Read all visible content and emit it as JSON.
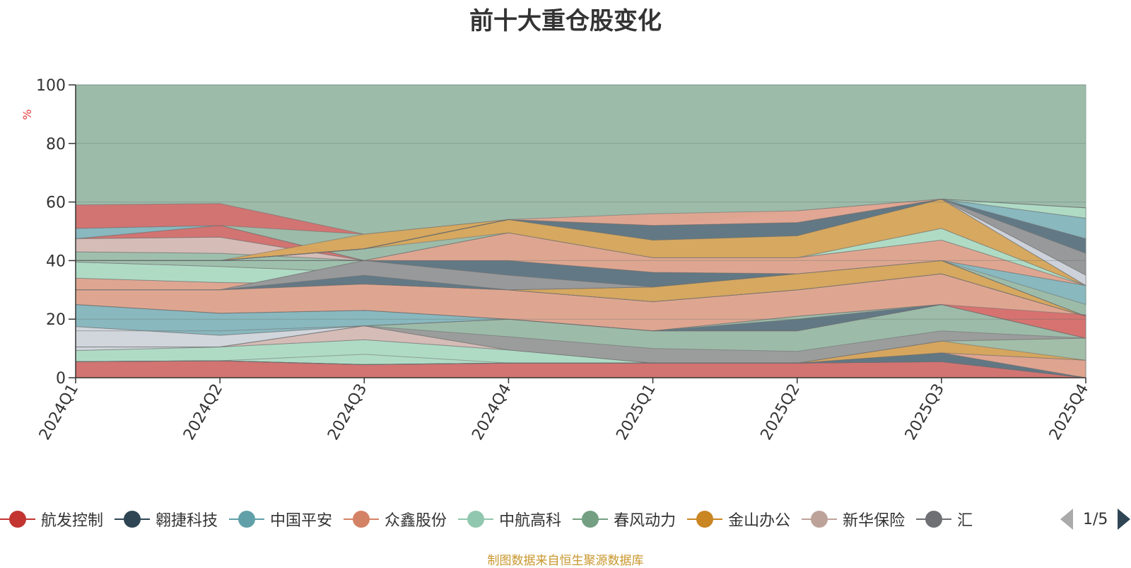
{
  "title": "前十大重仓股变化",
  "source_note": "制图数据来自恒生聚源数据库",
  "pager": {
    "text": "1/5",
    "prev_icon": "triangle-left",
    "next_icon": "triangle-right"
  },
  "chart_data": {
    "type": "area",
    "title": "前十大重仓股变化",
    "ylabel": "%",
    "ylim": [
      0,
      100
    ],
    "yticks": [
      0,
      20,
      40,
      60,
      80,
      100
    ],
    "categories": [
      "2024Q1",
      "2024Q2",
      "2024Q3",
      "2024Q4",
      "2025Q1",
      "2025Q2",
      "2025Q3",
      "2025Q4"
    ],
    "legend_visible": [
      "航发控制",
      "翱捷科技",
      "中国平安",
      "众鑫股份",
      "中航高科",
      "春风动力",
      "金山办公",
      "新华保险",
      "汇"
    ],
    "layers": [
      {
        "color": "#d5706f",
        "lower": [
          0,
          0,
          0,
          0,
          0,
          0,
          0,
          0
        ],
        "upper": [
          5.5,
          5.8,
          4.5,
          5,
          5,
          5,
          5.5,
          0
        ]
      },
      {
        "color": "#b0dcc6",
        "lower": [
          5.5,
          5.8,
          4.5,
          5,
          5,
          5,
          5.5,
          0
        ],
        "upper": [
          9.3,
          10.5,
          13,
          9.5,
          5,
          5,
          5.5,
          0
        ]
      },
      {
        "color": "#d3d7de",
        "lower": [
          9.3,
          10.5,
          17.7,
          20,
          16,
          16,
          25,
          13.5
        ],
        "upper": [
          17.5,
          14.5,
          17.7,
          20,
          16,
          16,
          25,
          13.5
        ]
      },
      {
        "color": "#88b7c0",
        "lower": [
          17.5,
          14.5,
          17.7,
          20,
          16,
          16,
          25,
          13.5
        ],
        "upper": [
          25,
          22,
          23,
          20,
          16,
          16,
          25,
          13.5
        ]
      },
      {
        "color": "#e1a48f",
        "lower": [
          25,
          22,
          23,
          20,
          16,
          21,
          25,
          13.5
        ],
        "upper": [
          34,
          32.5,
          32,
          30,
          26,
          30,
          35.5,
          21
        ]
      },
      {
        "color": "#b0dcc6",
        "lower": [
          34,
          32.5,
          32,
          30,
          26,
          30,
          35.5,
          21
        ],
        "upper": [
          39.5,
          38,
          36,
          30,
          26,
          30,
          35.5,
          21
        ]
      },
      {
        "color": "#9fbfad",
        "lower": [
          39.5,
          38,
          36,
          30,
          26,
          30,
          35.5,
          21
        ],
        "upper": [
          43,
          42.5,
          40,
          30,
          26,
          30,
          35.5,
          21
        ]
      },
      {
        "color": "#d8bcb7",
        "lower": [
          43,
          42.5,
          40,
          30,
          26,
          30,
          35.5,
          21
        ],
        "upper": [
          47.5,
          48,
          40,
          30,
          26,
          30,
          35.5,
          21
        ]
      },
      {
        "color": "#d5706f",
        "lower": [
          47.5,
          48,
          40,
          30,
          26,
          30,
          35.5,
          21
        ],
        "upper": [
          47.5,
          52,
          40,
          30,
          26,
          30,
          35.5,
          21
        ]
      },
      {
        "color": "#88b7c0",
        "lower": [
          47.5,
          52,
          40,
          30,
          26,
          30,
          35.5,
          21
        ],
        "upper": [
          51,
          52,
          40,
          30,
          26,
          30,
          35.5,
          21
        ]
      },
      {
        "color": "#d5706f",
        "lower": [
          51,
          52,
          49,
          54,
          52,
          56,
          61,
          58
        ],
        "upper": [
          59,
          59.5,
          49,
          54,
          52,
          56,
          61,
          58
        ]
      },
      {
        "color": "#b0dcc6",
        "lower": [
          5.5,
          5.8,
          4.5,
          5,
          5,
          5,
          5.5,
          0
        ],
        "upper": [
          5.5,
          5.8,
          8,
          5,
          5,
          5,
          5.5,
          0
        ]
      },
      {
        "color": "#d8bcb7",
        "lower": [
          10.5,
          10.5,
          13,
          9.5,
          5,
          5,
          5.5,
          0
        ],
        "upper": [
          10.5,
          10.5,
          17.7,
          9.5,
          5,
          5,
          5.5,
          0
        ]
      },
      {
        "color": "#9b9b9b",
        "lower": [
          10.5,
          10.5,
          17.7,
          9.5,
          5,
          5,
          5.5,
          0
        ],
        "upper": [
          10.5,
          10.5,
          17.7,
          14,
          10,
          9,
          16,
          13.5
        ]
      },
      {
        "color": "#5f7583",
        "lower": [
          5.5,
          5.8,
          4.5,
          5,
          5,
          5,
          5.5,
          0
        ],
        "upper": [
          5.5,
          5.8,
          4.5,
          5,
          5,
          5,
          8.5,
          0
        ]
      },
      {
        "color": "#e1a48f",
        "lower": [
          5.5,
          5.8,
          4.5,
          5,
          5,
          5,
          8.5,
          0
        ],
        "upper": [
          5.5,
          5.8,
          4.5,
          5,
          5,
          5,
          8.5,
          6
        ]
      },
      {
        "color": "#d9a65c",
        "lower": [
          5.5,
          5.8,
          4.5,
          5,
          5,
          5,
          8.5,
          6
        ],
        "upper": [
          5.5,
          5.8,
          4.5,
          5,
          5,
          5,
          12.5,
          13.5
        ]
      },
      {
        "color": "#9fbfad",
        "lower": [
          5.5,
          5.8,
          4.5,
          5,
          5,
          5,
          12.5,
          6
        ],
        "upper": [
          5.5,
          5.8,
          4.5,
          5,
          5,
          5,
          12.5,
          13.5
        ]
      },
      {
        "color": "#5f7583",
        "lower": [
          16,
          16,
          17.7,
          20,
          16,
          16,
          25,
          13.5
        ],
        "upper": [
          16,
          16,
          17.7,
          20,
          16,
          20,
          25,
          13.5
        ]
      },
      {
        "color": "#d5706f",
        "lower": [
          25,
          22,
          23,
          20,
          16,
          21,
          25,
          13.5
        ],
        "upper": [
          25,
          22,
          23,
          20,
          16,
          21,
          25,
          21.5
        ]
      },
      {
        "color": "#d9a65c",
        "lower": [
          30,
          30,
          32,
          30,
          26,
          30,
          35.5,
          21
        ],
        "upper": [
          30,
          30,
          32,
          30,
          31,
          35.5,
          40,
          21
        ]
      },
      {
        "color": "#5f7583",
        "lower": [
          30,
          30,
          32,
          30,
          31,
          35.5,
          40,
          21
        ],
        "upper": [
          30,
          30,
          40,
          40,
          36,
          35.5,
          40,
          21
        ]
      },
      {
        "color": "#9b9b9b",
        "lower": [
          30,
          30,
          35,
          30,
          31,
          35.5,
          40,
          21
        ],
        "upper": [
          30,
          30,
          40,
          35,
          31,
          35.5,
          40,
          21
        ]
      },
      {
        "color": "#88b7c0",
        "lower": [
          40,
          40,
          40,
          40,
          36,
          35.5,
          40,
          25
        ],
        "upper": [
          40,
          40,
          40,
          40,
          36,
          35.5,
          40,
          31.5
        ]
      },
      {
        "color": "#e1a48f",
        "lower": [
          40,
          40,
          40,
          40,
          36,
          35.5,
          40,
          31.5
        ],
        "upper": [
          40,
          40,
          40,
          49.5,
          41,
          41,
          47,
          31.5
        ]
      },
      {
        "color": "#b0dcc6",
        "lower": [
          40,
          40,
          40,
          49.5,
          41,
          41,
          47,
          31.5
        ],
        "upper": [
          40,
          40,
          40,
          49.5,
          41,
          41,
          51,
          31.5
        ]
      },
      {
        "color": "#d9a65c",
        "lower": [
          40,
          40,
          44,
          49.5,
          41,
          41,
          51,
          31.5
        ],
        "upper": [
          40,
          40,
          49,
          54,
          47,
          48.5,
          61,
          31.5
        ]
      },
      {
        "color": "#5f7583",
        "lower": [
          40,
          40,
          44,
          54,
          47,
          48.5,
          61,
          31.5
        ],
        "upper": [
          40,
          40,
          44,
          54,
          52,
          53,
          61,
          47.5
        ]
      },
      {
        "color": "#88b7c0",
        "lower": [
          40,
          40,
          44,
          54,
          52,
          53,
          61,
          47.5
        ],
        "upper": [
          40,
          40,
          44,
          54,
          52,
          53,
          61,
          54.5
        ]
      },
      {
        "color": "#b0dcc6",
        "lower": [
          40,
          40,
          44,
          54,
          52,
          53,
          61,
          54.5
        ],
        "upper": [
          40,
          40,
          44,
          54,
          52,
          53,
          61,
          58
        ]
      },
      {
        "color": "#9b9b9b",
        "lower": [
          40,
          40,
          44,
          54,
          52,
          53,
          61,
          35
        ],
        "upper": [
          40,
          40,
          44,
          54,
          52,
          53,
          61,
          42.5
        ]
      },
      {
        "color": "#d3d7de",
        "lower": [
          40,
          40,
          44,
          54,
          52,
          53,
          61,
          31.5
        ],
        "upper": [
          40,
          40,
          44,
          54,
          52,
          57,
          61,
          35
        ]
      },
      {
        "color": "#e1a48f",
        "lower": [
          40,
          40,
          44,
          54,
          52,
          53,
          61,
          58
        ],
        "upper": [
          40,
          40,
          44,
          54,
          56,
          57,
          61,
          58
        ]
      }
    ],
    "legend": [
      {
        "name": "航发控制",
        "color": "#c23531"
      },
      {
        "name": "翱捷科技",
        "color": "#2f4554"
      },
      {
        "name": "中国平安",
        "color": "#61a0a8"
      },
      {
        "name": "众鑫股份",
        "color": "#d48265"
      },
      {
        "name": "中航高科",
        "color": "#91c7ae"
      },
      {
        "name": "春风动力",
        "color": "#749f83"
      },
      {
        "name": "金山办公",
        "color": "#ca8622"
      },
      {
        "name": "新华保险",
        "color": "#bda29a"
      },
      {
        "name": "汇",
        "color": "#6e7074"
      }
    ]
  }
}
